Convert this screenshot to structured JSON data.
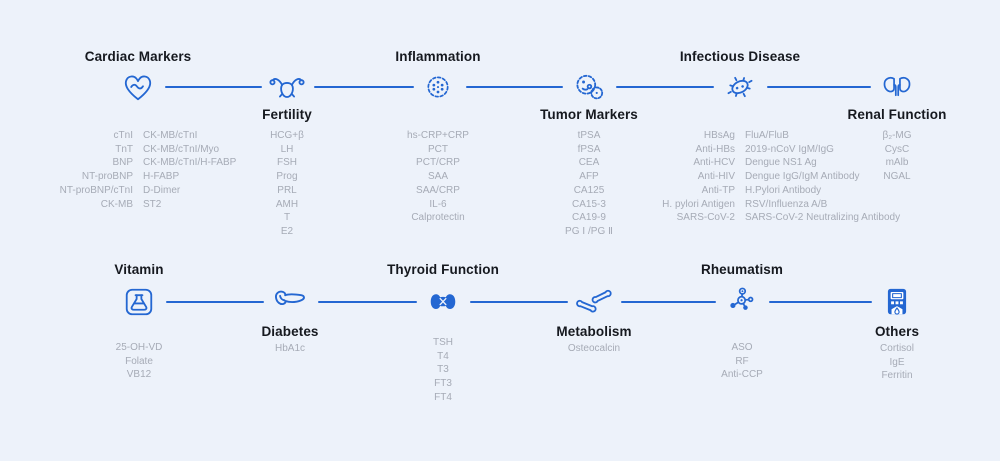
{
  "colors": {
    "background": "#edf2fa",
    "accent": "#2467d2",
    "title": "#16191f",
    "list_text": "#a6abb6"
  },
  "rows": [
    {
      "groups": [
        {
          "name": "Cardiac Markers",
          "icon": "heart-pulse-icon",
          "title_position": "above",
          "columns": [
            [
              "cTnI",
              "TnT",
              "BNP",
              "NT-proBNP",
              "NT-proBNP/cTnI",
              "CK-MB"
            ],
            [
              "CK-MB/cTnI",
              "CK-MB/cTnI/Myo",
              "CK-MB/cTnI/H-FABP",
              "H-FABP",
              "D-Dimer",
              "ST2"
            ]
          ]
        },
        {
          "name": "Fertility",
          "icon": "uterus-icon",
          "title_position": "below",
          "items": [
            "HCG+β",
            "LH",
            "FSH",
            "Prog",
            "PRL",
            "AMH",
            "T",
            "E2"
          ]
        },
        {
          "name": "Inflammation",
          "icon": "virus-icon",
          "title_position": "above",
          "items": [
            "hs-CRP+CRP",
            "PCT",
            "PCT/CRP",
            "SAA",
            "SAA/CRP",
            "IL-6",
            "Calprotectin"
          ]
        },
        {
          "name": "Tumor Markers",
          "icon": "tumor-cell-icon",
          "title_position": "below",
          "items": [
            "tPSA",
            "fPSA",
            "CEA",
            "AFP",
            "CA125",
            "CA15-3",
            "CA19-9",
            "PG Ⅰ /PG Ⅱ"
          ]
        },
        {
          "name": "Infectious Disease",
          "icon": "bacteria-icon",
          "title_position": "above",
          "columns": [
            [
              "HBsAg",
              "Anti-HBs",
              "Anti-HCV",
              "Anti-HIV",
              "Anti-TP",
              "H. pylori Antigen",
              "SARS-CoV-2"
            ],
            [
              "FluA/FluB",
              "2019-nCoV IgM/IgG",
              "Dengue NS1 Ag",
              "Dengue IgG/IgM Antibody",
              "H.Pylori Antibody",
              "RSV/Influenza A/B",
              "SARS-CoV-2 Neutralizing Antibody"
            ]
          ]
        },
        {
          "name": "Renal Function",
          "icon": "kidneys-icon",
          "title_position": "below",
          "items": [
            "β₂-MG",
            "CysC",
            "mAlb",
            "NGAL"
          ]
        }
      ]
    },
    {
      "groups": [
        {
          "name": "Vitamin",
          "icon": "flask-icon",
          "title_position": "above",
          "items": [
            "25-OH-VD",
            "Folate",
            "VB12"
          ]
        },
        {
          "name": "Diabetes",
          "icon": "pancreas-icon",
          "title_position": "below",
          "items": [
            "HbA1c"
          ]
        },
        {
          "name": "Thyroid Function",
          "icon": "thyroid-icon",
          "title_position": "above",
          "items": [
            "TSH",
            "T4",
            "T3",
            "FT3",
            "FT4"
          ]
        },
        {
          "name": "Metabolism",
          "icon": "bone-joint-icon",
          "title_position": "below",
          "items": [
            "Osteocalcin"
          ]
        },
        {
          "name": "Rheumatism",
          "icon": "molecule-icon",
          "title_position": "above",
          "items": [
            "ASO",
            "RF",
            "Anti-CCP"
          ]
        },
        {
          "name": "Others",
          "icon": "analyzer-device-icon",
          "title_position": "below",
          "items": [
            "Cortisol",
            "IgE",
            "Ferritin"
          ]
        }
      ]
    }
  ]
}
